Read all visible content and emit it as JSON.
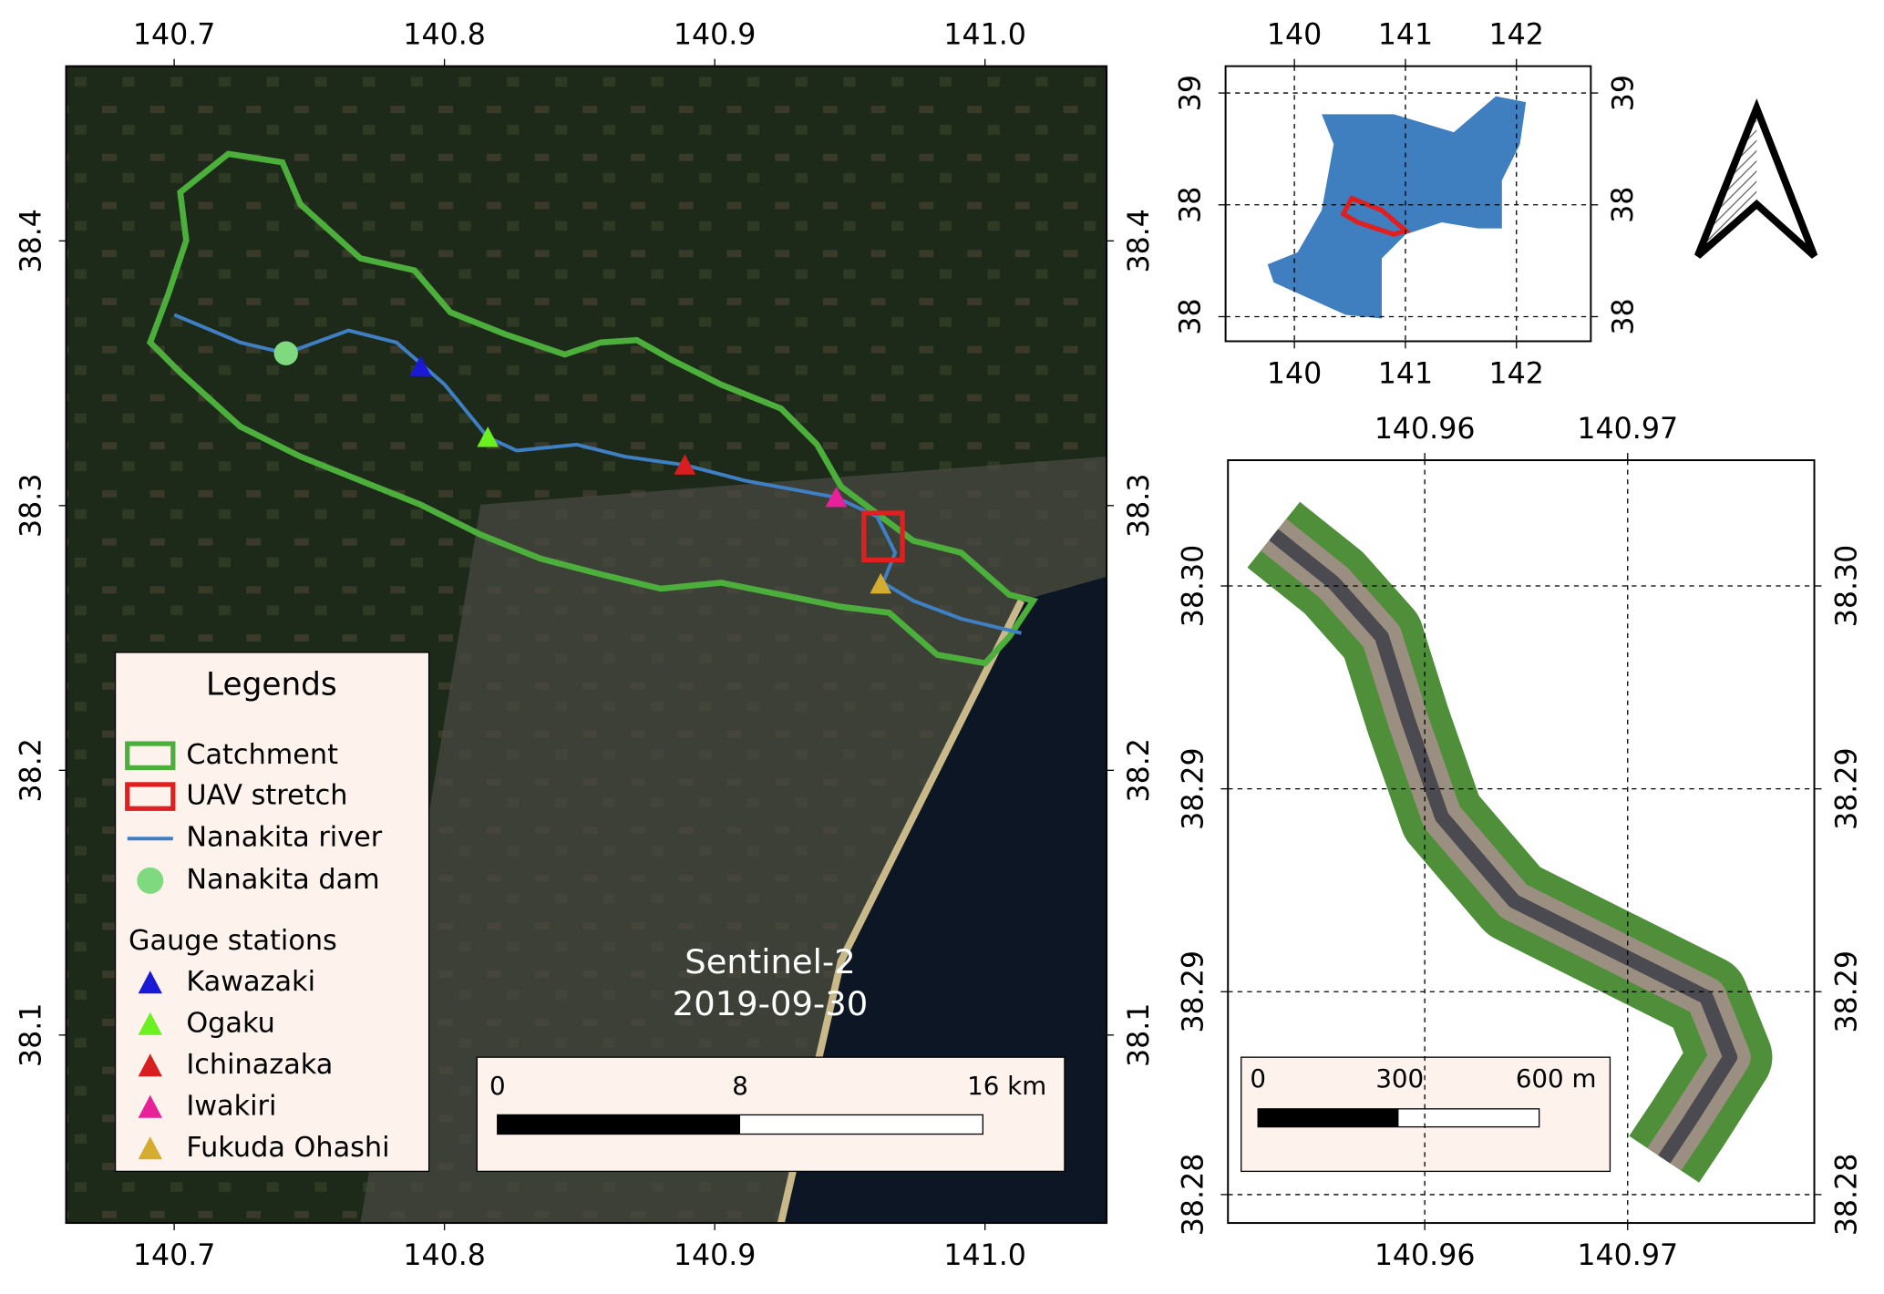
{
  "main_map": {
    "xlim": [
      140.66,
      141.045
    ],
    "ylim": [
      38.029,
      38.466
    ],
    "xticks": [
      140.7,
      140.8,
      140.9,
      {
        "value": 141,
        "label": "141.0"
      }
    ],
    "yticks": [
      38.1,
      38.2,
      38.3,
      38.4
    ],
    "annotation": [
      "Sentinel-2",
      "2019-09-30"
    ],
    "legend": {
      "title": "Legends",
      "items": [
        {
          "name": "Catchment",
          "color": "#4caf3c"
        },
        {
          "name": "UAV stretch",
          "color": "#e02020"
        },
        {
          "name": "Nanakita river",
          "color": "#3f7fc4"
        },
        {
          "name": "Nanakita dam",
          "color": "#7fd97f"
        }
      ],
      "subtitle": "Gauge stations",
      "stations": [
        {
          "name": "Kawazaki",
          "color": "#1a1ad6"
        },
        {
          "name": "Ogaku",
          "color": "#6cf020"
        },
        {
          "name": "Ichinazaka",
          "color": "#d81e1e"
        },
        {
          "name": "Iwakiri",
          "color": "#e8209a"
        },
        {
          "name": "Fukuda Ohashi",
          "color": "#d4ac30"
        }
      ]
    },
    "scale_bar": [
      "0",
      "8",
      "16 km"
    ]
  },
  "overview_map": {
    "xlim": [
      139.38,
      142.67
    ],
    "ylim": [
      37.89,
      39.12
    ],
    "xticks": [
      140,
      141,
      142
    ],
    "yticks": [
      39,
      {
        "value": 38.5,
        "label": "38"
      },
      38
    ],
    "grid": true
  },
  "uav_map": {
    "xlim": [
      140.9503,
      140.9792
    ],
    "ylim": [
      38.2843,
      38.3031
    ],
    "xticks": [
      140.96,
      140.97
    ],
    "yticks": [
      {
        "value": 38.3,
        "label": "38.30"
      },
      {
        "value": 38.295,
        "label": "38.29"
      },
      {
        "value": 38.29,
        "label": "38.29"
      },
      {
        "value": 38.285,
        "label": "38.28"
      }
    ],
    "grid": true,
    "scale_bar": [
      "0",
      "300",
      "600 m"
    ]
  }
}
